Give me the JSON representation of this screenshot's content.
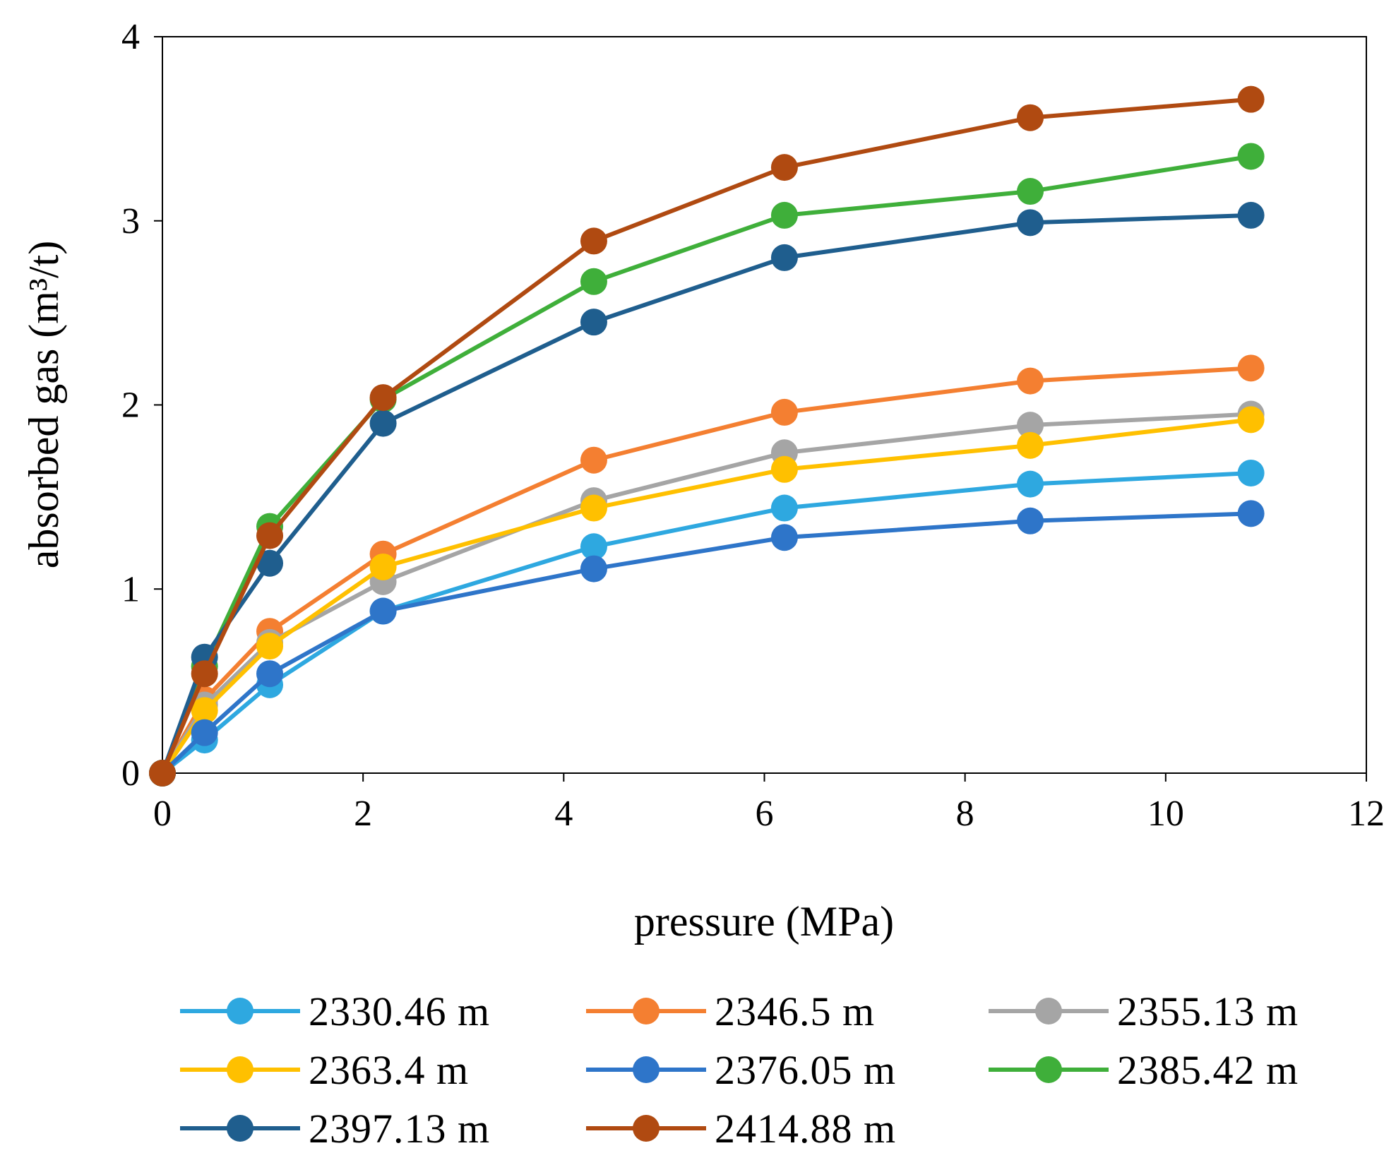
{
  "chart_data": {
    "type": "line",
    "title": "",
    "xlabel": "pressure (MPa)",
    "ylabel": "absorbed gas (m³/t)",
    "xlim": [
      0,
      12
    ],
    "ylim": [
      0,
      4
    ],
    "xticks": [
      0,
      2,
      4,
      6,
      8,
      10,
      12
    ],
    "yticks": [
      0,
      1,
      2,
      3,
      4
    ],
    "xtick_labels": [
      "0",
      "2",
      "4",
      "6",
      "8",
      "10",
      "12"
    ],
    "ytick_labels": [
      "0",
      "1",
      "2",
      "3",
      "4"
    ],
    "grid": false,
    "legend_position": "bottom",
    "x": [
      0,
      0.42,
      1.07,
      2.2,
      4.3,
      6.2,
      8.65,
      10.85
    ],
    "series": [
      {
        "name": "2330.46 m",
        "color": "#2EA8E0",
        "values": [
          0,
          0.18,
          0.48,
          0.88,
          1.23,
          1.44,
          1.57,
          1.63
        ]
      },
      {
        "name": "2346.5 m",
        "color": "#F47F31",
        "values": [
          0,
          0.4,
          0.77,
          1.19,
          1.7,
          1.96,
          2.13,
          2.2
        ]
      },
      {
        "name": "2355.13 m",
        "color": "#A5A5A5",
        "values": [
          0,
          0.37,
          0.71,
          1.04,
          1.48,
          1.74,
          1.89,
          1.95
        ]
      },
      {
        "name": "2363.4 m",
        "color": "#FFC000",
        "values": [
          0,
          0.34,
          0.69,
          1.12,
          1.44,
          1.65,
          1.78,
          1.92
        ]
      },
      {
        "name": "2376.05 m",
        "color": "#2E75C9",
        "values": [
          0,
          0.22,
          0.54,
          0.88,
          1.11,
          1.28,
          1.37,
          1.41
        ]
      },
      {
        "name": "2385.42 m",
        "color": "#3FAF3A",
        "values": [
          0,
          0.58,
          1.34,
          2.03,
          2.67,
          3.03,
          3.16,
          3.35
        ]
      },
      {
        "name": "2397.13 m",
        "color": "#1F5E8E",
        "values": [
          0,
          0.63,
          1.14,
          1.9,
          2.45,
          2.8,
          2.99,
          3.03
        ]
      },
      {
        "name": "2414.88 m",
        "color": "#B04A11",
        "values": [
          0,
          0.54,
          1.29,
          2.04,
          2.89,
          3.29,
          3.56,
          3.66
        ]
      }
    ]
  }
}
